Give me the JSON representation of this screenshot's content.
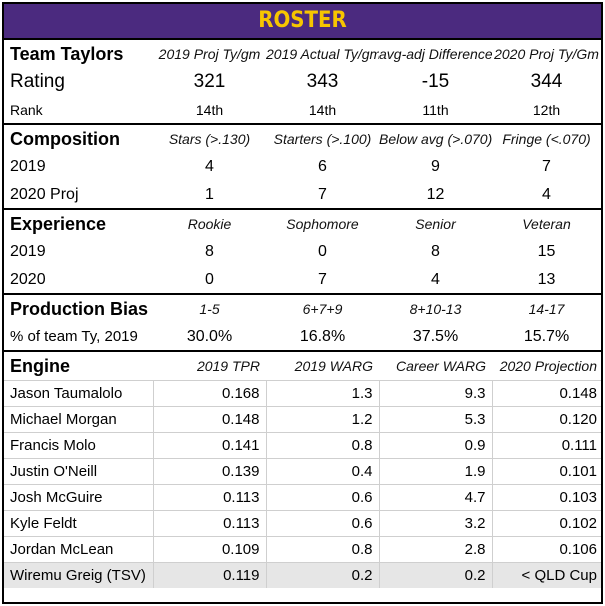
{
  "title": "ROSTER",
  "team": {
    "header": "Team Taylors",
    "cols": [
      "2019 Proj Ty/gm",
      "2019 Actual Ty/gm",
      "avg-adj Difference",
      "2020 Proj Ty/Gm"
    ],
    "rating_label": "Rating",
    "rating": [
      "321",
      "343",
      "-15",
      "344"
    ],
    "rank_label": "Rank",
    "rank": [
      "14th",
      "14th",
      "11th",
      "12th"
    ]
  },
  "composition": {
    "header": "Composition",
    "cols": [
      "Stars (>.130)",
      "Starters (>.100)",
      "Below avg (>.070)",
      "Fringe (<.070)"
    ],
    "rows": [
      {
        "label": "2019",
        "values": [
          "4",
          "6",
          "9",
          "7"
        ]
      },
      {
        "label": "2020 Proj",
        "values": [
          "1",
          "7",
          "12",
          "4"
        ]
      }
    ]
  },
  "experience": {
    "header": "Experience",
    "cols": [
      "Rookie",
      "Sophomore",
      "Senior",
      "Veteran"
    ],
    "rows": [
      {
        "label": "2019",
        "values": [
          "8",
          "0",
          "8",
          "15"
        ]
      },
      {
        "label": "2020",
        "values": [
          "0",
          "7",
          "4",
          "13"
        ]
      }
    ]
  },
  "production": {
    "header": "Production Bias",
    "cols": [
      "1-5",
      "6+7+9",
      "8+10-13",
      "14-17"
    ],
    "row_label": "% of team Ty, 2019",
    "values": [
      "30.0%",
      "16.8%",
      "37.5%",
      "15.7%"
    ]
  },
  "engine": {
    "header": "Engine",
    "cols": [
      "2019 TPR",
      "2019 WARG",
      "Career WARG",
      "2020 Projection"
    ],
    "rows": [
      {
        "name": "Jason Taumalolo",
        "values": [
          "0.168",
          "1.3",
          "9.3",
          "0.148"
        ]
      },
      {
        "name": "Michael Morgan",
        "values": [
          "0.148",
          "1.2",
          "5.3",
          "0.120"
        ]
      },
      {
        "name": "Francis Molo",
        "values": [
          "0.141",
          "0.8",
          "0.9",
          "0.111"
        ]
      },
      {
        "name": "Justin O'Neill",
        "values": [
          "0.139",
          "0.4",
          "1.9",
          "0.101"
        ]
      },
      {
        "name": "Josh McGuire",
        "values": [
          "0.113",
          "0.6",
          "4.7",
          "0.103"
        ]
      },
      {
        "name": "Kyle Feldt",
        "values": [
          "0.113",
          "0.6",
          "3.2",
          "0.102"
        ]
      },
      {
        "name": "Jordan McLean",
        "values": [
          "0.109",
          "0.8",
          "2.8",
          "0.106"
        ]
      },
      {
        "name": "Wiremu Greig (TSV)",
        "values": [
          "0.119",
          "0.2",
          "0.2",
          "< QLD Cup"
        ]
      }
    ]
  }
}
